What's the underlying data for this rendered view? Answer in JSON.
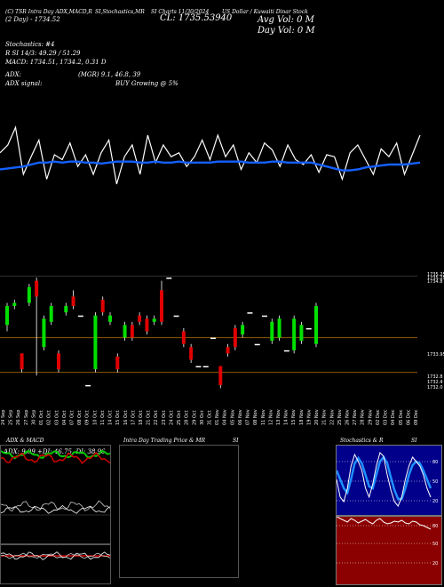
{
  "header": {
    "line1_left": "(C) TSR Intra Day ADX,MACD,R",
    "line1_mid": "SI,Stochastics,MR",
    "line1_mid2": "SI Charts 11/30/2024",
    "line1_right": "US Dollar / Kuwaiti Dinar Stock",
    "line2_left": "(2 Day) - 1734.52",
    "cl_label": "CL: 1735.53940",
    "avg_vol": "Avg Vol: 0  M",
    "day_vol": "Day Vol: 0   M"
  },
  "indicators": {
    "stoch_title": "Stochastics: #4",
    "stoch_values": "R                           SI 14/3: 49.29 / 51.29",
    "macd_values": "MACD: 1734.51, 1734.2, 0.31 D",
    "adx_label": "ADX:",
    "adx_values": "(MGR) 9.1, 46.8, 39",
    "adx_signal_label": "ADX  signal:",
    "adx_signal_value": "BUY Growing @ 5%"
  },
  "price_axis": {
    "labels": [
      "1735.25",
      "1735.25",
      "1734.8",
      "1733.95",
      "1732.8",
      "1732.4",
      "1732.0"
    ]
  },
  "x_axis": {
    "dates": [
      "24 Sep",
      "25 Sep",
      "26 Sep",
      "27 Sep",
      "30 Sep",
      "01 Oct",
      "02 Oct",
      "03 Oct",
      "04 Oct",
      "07 Oct",
      "08 Oct",
      "09 Oct",
      "10 Oct",
      "11 Oct",
      "14 Oct",
      "15 Oct",
      "16 Oct",
      "17 Oct",
      "18 Oct",
      "21 Oct",
      "22 Oct",
      "23 Oct",
      "24 Oct",
      "25 Oct",
      "28 Oct",
      "29 Oct",
      "30 Oct",
      "31 Oct",
      "01 Nov",
      "04 Nov",
      "05 Nov",
      "06 Nov",
      "07 Nov",
      "08 Nov",
      "11 Nov",
      "12 Nov",
      "13 Nov",
      "14 Nov",
      "15 Nov",
      "18 Nov",
      "19 Nov",
      "20 Nov",
      "21 Nov",
      "22 Nov",
      "25 Nov",
      "26 Nov",
      "27 Nov",
      "28 Nov",
      "29 Nov",
      "02 Dec",
      "03 Dec",
      "04 Dec",
      "05 Dec",
      "06 Dec",
      "09 Dec"
    ]
  },
  "panels": {
    "adx_title": "ADX  & MACD",
    "adx_values": "ADX: 9.09  +DI: 46.75  -DI: 38.96",
    "intraday_title": "Intra  Day Trading Price  & MR",
    "intraday_si": "SI",
    "stoch_title": "Stochastics & R",
    "stoch_si": "SI",
    "stoch_levels": [
      "80",
      "50",
      "20"
    ],
    "rsi_levels": [
      "80",
      "50",
      "20"
    ]
  },
  "colors": {
    "up": "#00e000",
    "down": "#e00000",
    "ma": "#1560ff",
    "grid": "#8b5a00"
  },
  "chart_data": {
    "type": "line",
    "title": "US Dollar / Kuwaiti Dinar Stock",
    "series": [
      {
        "values": [
          62,
          70,
          88,
          40,
          58,
          75,
          35,
          60,
          55,
          72,
          48,
          60,
          40,
          62,
          75,
          30,
          58,
          70,
          40,
          80,
          52,
          70,
          58,
          62,
          48,
          58,
          75,
          55,
          80,
          58,
          70,
          45,
          62,
          52,
          72,
          65,
          48,
          70,
          55,
          50,
          60,
          42,
          60,
          58,
          35,
          62,
          70,
          55,
          40,
          66,
          58,
          72,
          40,
          60,
          80
        ]
      },
      {
        "values": [
          45,
          46,
          47,
          48,
          50,
          52,
          52,
          53,
          52,
          53,
          53,
          52,
          52,
          51,
          52,
          53,
          53,
          53,
          52,
          52,
          53,
          52,
          52,
          53,
          52,
          52,
          52,
          52,
          53,
          53,
          53,
          53,
          52,
          52,
          52,
          53,
          53,
          52,
          52,
          52,
          52,
          50,
          48,
          46,
          44,
          44,
          45,
          47,
          48,
          49,
          50,
          50,
          50,
          51,
          52
        ]
      }
    ],
    "candles": [
      {
        "o": 1733.9,
        "c": 1734.5,
        "h": 1734.6,
        "l": 1733.7
      },
      {
        "o": 1734.5,
        "c": 1734.6,
        "h": 1734.7,
        "l": 1734.4
      },
      {
        "o": 1733.0,
        "c": 1732.5,
        "h": 1733.0,
        "l": 1732.4
      },
      {
        "o": 1734.6,
        "c": 1735.1,
        "h": 1735.2,
        "l": 1734.5
      },
      {
        "o": 1735.3,
        "c": 1734.8,
        "h": 1735.4,
        "l": 1732.3
      },
      {
        "o": 1733.2,
        "c": 1734.1,
        "h": 1734.2,
        "l": 1733.1
      },
      {
        "o": 1734.0,
        "c": 1734.5,
        "h": 1734.6,
        "l": 1733.9
      },
      {
        "o": 1733.0,
        "c": 1732.5,
        "h": 1733.1,
        "l": 1732.4
      },
      {
        "o": 1734.3,
        "c": 1734.5,
        "h": 1734.6,
        "l": 1734.2
      },
      {
        "o": 1734.8,
        "c": 1734.5,
        "h": 1735.0,
        "l": 1734.4
      },
      {
        "o": 1734.2,
        "c": 1734.2,
        "h": 1734.2,
        "l": 1734.2
      },
      {
        "o": 1732.0,
        "c": 1732.0,
        "h": 1732.0,
        "l": 1732.0
      },
      {
        "o": 1732.5,
        "c": 1734.2,
        "h": 1734.3,
        "l": 1732.4
      },
      {
        "o": 1734.7,
        "c": 1734.3,
        "h": 1734.8,
        "l": 1734.2
      },
      {
        "o": 1734.0,
        "c": 1734.2,
        "h": 1734.3,
        "l": 1733.9
      },
      {
        "o": 1732.9,
        "c": 1732.5,
        "h": 1733.0,
        "l": 1732.4
      },
      {
        "o": 1733.5,
        "c": 1733.9,
        "h": 1734.0,
        "l": 1733.4
      },
      {
        "o": 1733.9,
        "c": 1733.5,
        "h": 1734.0,
        "l": 1733.4
      },
      {
        "o": 1734.2,
        "c": 1734.0,
        "h": 1734.3,
        "l": 1733.9
      },
      {
        "o": 1734.1,
        "c": 1733.7,
        "h": 1734.2,
        "l": 1733.6
      },
      {
        "o": 1734.0,
        "c": 1734.1,
        "h": 1734.2,
        "l": 1733.9
      },
      {
        "o": 1735.0,
        "c": 1734.0,
        "h": 1735.3,
        "l": 1733.9
      },
      {
        "o": 1735.4,
        "c": 1735.4,
        "h": 1735.4,
        "l": 1735.4
      },
      {
        "o": 1734.2,
        "c": 1734.2,
        "h": 1734.2,
        "l": 1734.2
      },
      {
        "o": 1733.7,
        "c": 1733.3,
        "h": 1733.8,
        "l": 1733.2
      },
      {
        "o": 1733.2,
        "c": 1732.8,
        "h": 1733.3,
        "l": 1732.7
      },
      {
        "o": 1732.6,
        "c": 1732.6,
        "h": 1732.6,
        "l": 1732.6
      },
      {
        "o": 1732.6,
        "c": 1732.6,
        "h": 1732.6,
        "l": 1732.6
      },
      {
        "o": 1733.5,
        "c": 1733.5,
        "h": 1733.5,
        "l": 1733.5
      },
      {
        "o": 1732.6,
        "c": 1732.0,
        "h": 1732.6,
        "l": 1731.9
      },
      {
        "o": 1733.2,
        "c": 1733.0,
        "h": 1733.3,
        "l": 1732.9
      },
      {
        "o": 1733.8,
        "c": 1733.2,
        "h": 1733.9,
        "l": 1733.1
      },
      {
        "o": 1733.6,
        "c": 1733.9,
        "h": 1734.0,
        "l": 1733.5
      },
      {
        "o": 1734.3,
        "c": 1734.3,
        "h": 1734.3,
        "l": 1734.3
      },
      {
        "o": 1733.3,
        "c": 1733.3,
        "h": 1733.3,
        "l": 1733.3
      },
      {
        "o": 1734.2,
        "c": 1734.2,
        "h": 1734.2,
        "l": 1734.2
      },
      {
        "o": 1733.4,
        "c": 1734.0,
        "h": 1734.1,
        "l": 1733.3
      },
      {
        "o": 1733.5,
        "c": 1734.1,
        "h": 1734.2,
        "l": 1733.4
      },
      {
        "o": 1733.1,
        "c": 1733.1,
        "h": 1733.1,
        "l": 1733.1
      },
      {
        "o": 1733.1,
        "c": 1734.1,
        "h": 1734.2,
        "l": 1733.0
      },
      {
        "o": 1733.4,
        "c": 1733.9,
        "h": 1734.0,
        "l": 1733.3
      },
      {
        "o": 1733.8,
        "c": 1733.8,
        "h": 1733.8,
        "l": 1733.8
      },
      {
        "o": 1733.3,
        "c": 1734.5,
        "h": 1734.6,
        "l": 1733.2
      }
    ]
  }
}
